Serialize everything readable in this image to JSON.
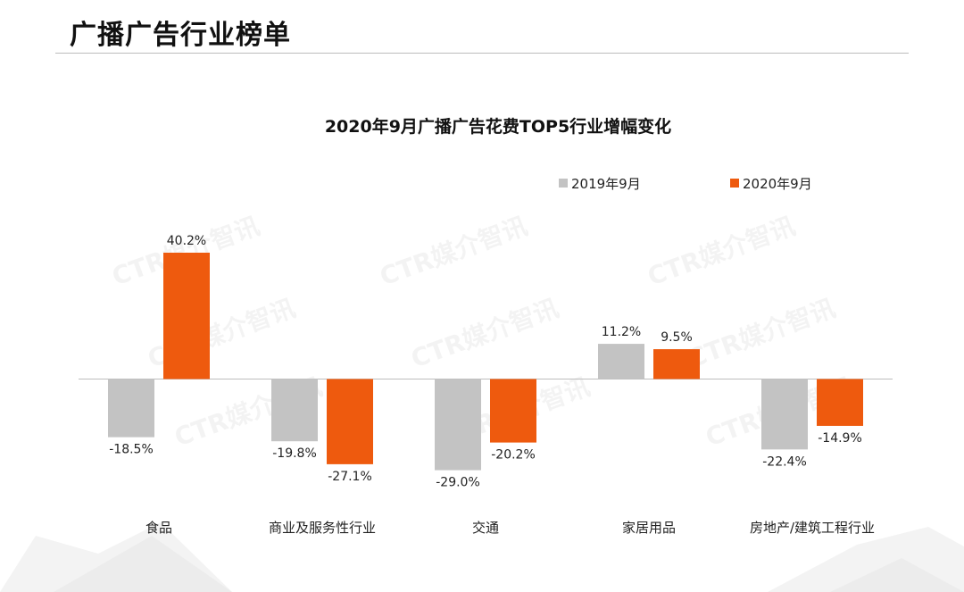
{
  "page": {
    "title": "广播广告行业榜单"
  },
  "watermark": "CTR媒介智讯",
  "colors": {
    "series_2019": "#c3c3c3",
    "series_2020": "#ee5a0e",
    "zero_line": "#bdbdbd"
  },
  "chart_data": {
    "type": "bar",
    "title": "2020年9月广播广告花费TOP5行业增幅变化",
    "xlabel": "",
    "ylabel": "",
    "categories": [
      "食品",
      "商业及服务性行业",
      "交通",
      "家居用品",
      "房地产/建筑工程行业"
    ],
    "series": [
      {
        "name": "2019年9月",
        "values": [
          -18.5,
          -19.8,
          -29.0,
          11.2,
          -22.4
        ],
        "labels": [
          "-18.5%",
          "-19.8%",
          "-29.0%",
          "11.2%",
          "-22.4%"
        ]
      },
      {
        "name": "2020年9月",
        "values": [
          40.2,
          -27.1,
          -20.2,
          9.5,
          -14.9
        ],
        "labels": [
          "40.2%",
          "-27.1%",
          "-20.2%",
          "9.5%",
          "-14.9%"
        ]
      }
    ],
    "ylim": [
      -30,
      42
    ],
    "grid": false,
    "legend_position": "top-right",
    "unit": "%"
  }
}
